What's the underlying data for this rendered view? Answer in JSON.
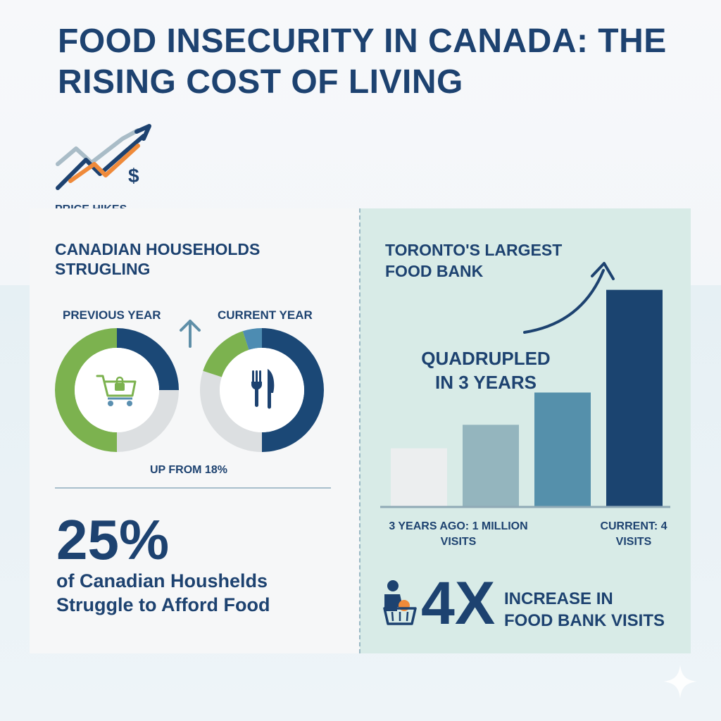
{
  "title": "FOOD INSECURITY IN CANADA: THE RISING COST OF LIVING",
  "price_hikes_label": "PRICE HIKES",
  "left": {
    "heading_line1": "CANADIAN HOUSEHOLDS",
    "heading_line2": "STRUGLING",
    "previous_label": "PREVIOUS YEAR",
    "current_label": "CURRENT YEAR",
    "up_from": "UP FROM 18%",
    "big_percent": "25%",
    "desc_line1": "of Canadian Houshelds",
    "desc_line2": "Struggle to Afford Food"
  },
  "right": {
    "heading_line1": "TORONTO'S LARGEST",
    "heading_line2": "FOOD BANK",
    "note_line1": "QUADRUPLED",
    "note_line2": "IN 3 YEARS",
    "caption_left_line1": "3 YEARS AGO: 1 MILLION",
    "caption_left_line2": "VISITS",
    "caption_right_line1": "CURRENT: 4",
    "caption_right_line2": "VISITS",
    "big_multiplier": "4X",
    "incr_line1": "INCREASE IN",
    "incr_line2": "FOOD BANK VISITS"
  },
  "icons": {
    "trend": "trend-up-dollar-icon",
    "cart": "shopping-cart-icon",
    "cutlery": "fork-knife-icon",
    "person": "person-basket-icon",
    "arrow": "arrow-up-icon"
  },
  "chart_data": [
    {
      "type": "pie",
      "variant": "donut",
      "label": "PREVIOUS YEAR",
      "slices": [
        {
          "value": 25,
          "color": "#1b4876"
        },
        {
          "value": 25,
          "color": "#dcdfe1"
        },
        {
          "value": 50,
          "color": "#7cb24f"
        }
      ]
    },
    {
      "type": "pie",
      "variant": "donut",
      "label": "CURRENT YEAR",
      "slices": [
        {
          "value": 50,
          "color": "#1b4876"
        },
        {
          "value": 30,
          "color": "#dcdfe1"
        },
        {
          "value": 15,
          "color": "#7cb24f"
        },
        {
          "value": 5,
          "color": "#4d8cb2"
        }
      ]
    },
    {
      "type": "bar",
      "values": [
        1,
        1.4,
        1.95,
        3.7
      ],
      "colors": [
        "#eceeef",
        "#94b5be",
        "#5590ab",
        "#1b4470"
      ],
      "ylim": [
        0,
        4.2
      ]
    }
  ],
  "colors": {
    "navy": "#1d4270",
    "green": "#7cb24f",
    "orange": "#ef8a3a",
    "panel_right": "#d8ebe7"
  }
}
